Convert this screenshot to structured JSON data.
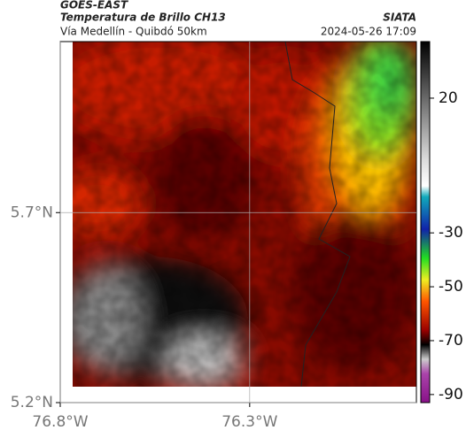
{
  "header": {
    "title": "GOES-EAST",
    "subtitle": "Temperatura de Brillo CH13",
    "source": "SIATA",
    "location": "Vía Medellín - Quibdó 50km",
    "datetime": "2024-05-26 17:09"
  },
  "map": {
    "xlim": [
      -76.8,
      -75.86
    ],
    "ylim": [
      5.2,
      6.15
    ],
    "xticks": [
      {
        "value": -76.8,
        "label": "76.8°W"
      },
      {
        "value": -76.3,
        "label": "76.3°W"
      }
    ],
    "yticks": [
      {
        "value": 5.2,
        "label": "5.2°N"
      },
      {
        "value": 5.7,
        "label": "5.7°N"
      }
    ],
    "grid": true
  },
  "colorbar": {
    "lim": [
      -93,
      41
    ],
    "ticks": [
      20,
      -30,
      -50,
      -70,
      -90
    ]
  }
}
